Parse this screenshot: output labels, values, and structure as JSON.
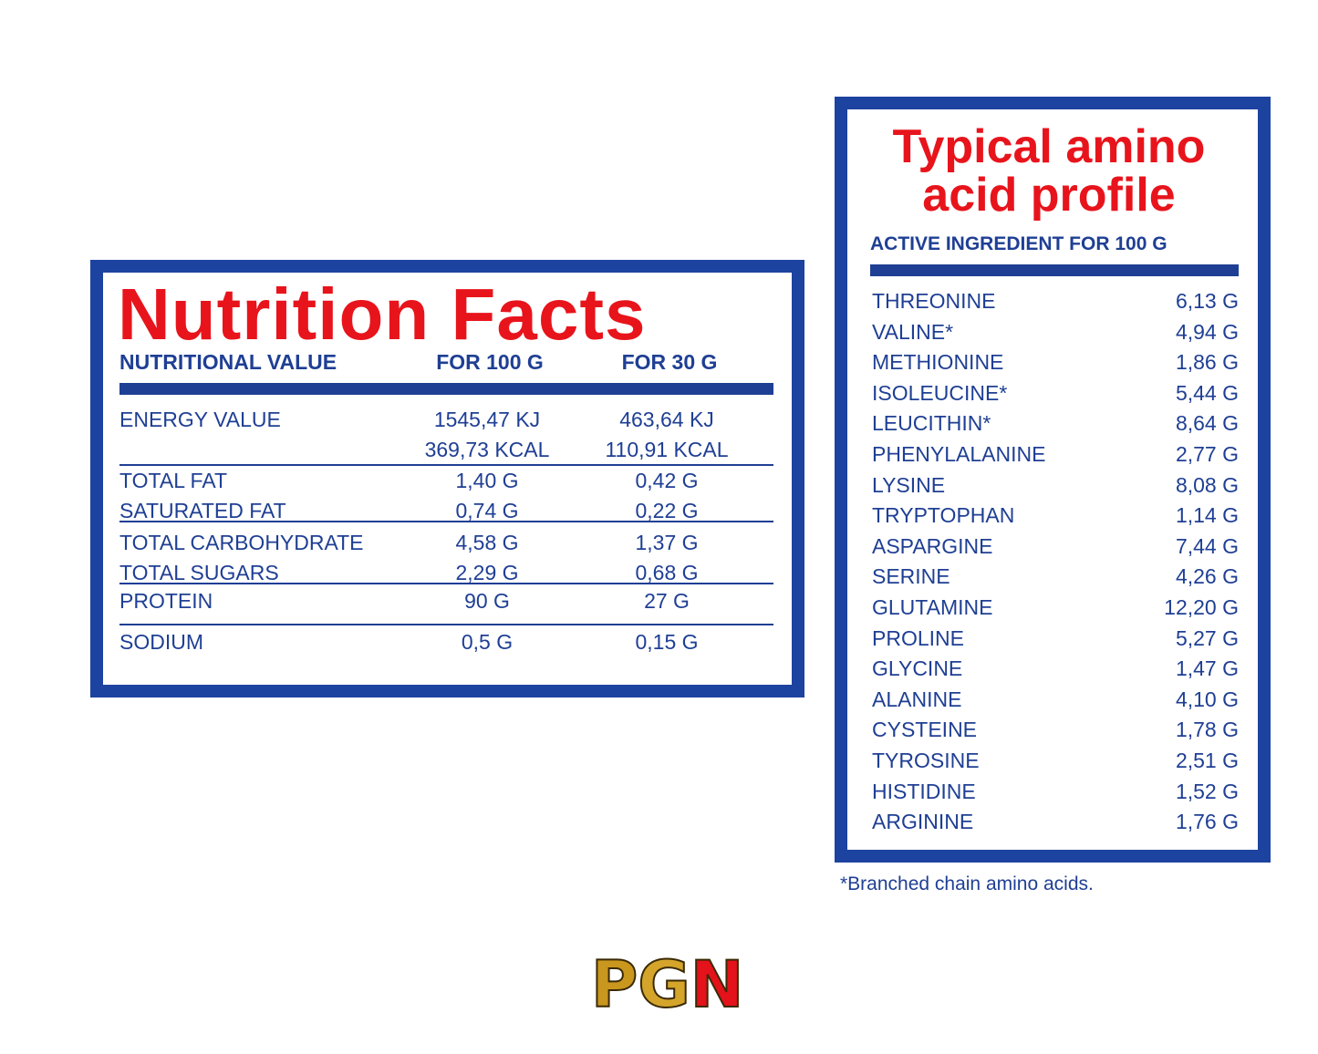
{
  "nutrition": {
    "title": "Nutrition Facts",
    "header": {
      "label": "NUTRITIONAL VALUE",
      "per_100g": "FOR 100 G",
      "per_30g": "FOR 30 G"
    },
    "energy": {
      "label": "ENERGY VALUE",
      "per_100g": [
        "1545,47 KJ",
        "369,73 KCAL"
      ],
      "per_30g": [
        "463,64 KJ",
        "110,91 KCAL"
      ]
    },
    "groups": [
      [
        {
          "label": "TOTAL FAT",
          "per_100g": "1,40 G",
          "per_30g": "0,42 G"
        },
        {
          "label": "SATURATED FAT",
          "per_100g": "0,74 G",
          "per_30g": "0,22 G"
        }
      ],
      [
        {
          "label": "TOTAL CARBOHYDRATE",
          "per_100g": "4,58 G",
          "per_30g": "1,37 G"
        },
        {
          "label": "TOTAL SUGARS",
          "per_100g": "2,29 G",
          "per_30g": "0,68 G"
        }
      ],
      [
        {
          "label": "PROTEIN",
          "per_100g": "90 G",
          "per_30g": "27 G"
        }
      ],
      [
        {
          "label": "SODIUM",
          "per_100g": "0,5 G",
          "per_30g": "0,15 G"
        }
      ]
    ]
  },
  "amino": {
    "title": [
      "Typical amino",
      "acid profile"
    ],
    "subtitle": "ACTIVE INGREDIENT FOR 100 G",
    "rows": [
      {
        "name": "THREONINE",
        "amount": "6,13 G"
      },
      {
        "name": "VALINE*",
        "amount": "4,94 G"
      },
      {
        "name": "METHIONINE",
        "amount": "1,86 G"
      },
      {
        "name": "ISOLEUCINE*",
        "amount": "5,44 G"
      },
      {
        "name": "LEUCITHIN*",
        "amount": "8,64 G"
      },
      {
        "name": "PHENYLALANINE",
        "amount": "2,77 G"
      },
      {
        "name": "LYSINE",
        "amount": "8,08 G"
      },
      {
        "name": "TRYPTOPHAN",
        "amount": "1,14 G"
      },
      {
        "name": "ASPARGINE",
        "amount": "7,44 G"
      },
      {
        "name": "SERINE",
        "amount": "4,26 G"
      },
      {
        "name": "GLUTAMINE",
        "amount": "12,20 G"
      },
      {
        "name": "PROLINE",
        "amount": "5,27 G"
      },
      {
        "name": "GLYCINE",
        "amount": "1,47 G"
      },
      {
        "name": "ALANINE",
        "amount": "4,10 G"
      },
      {
        "name": "CYSTEINE",
        "amount": "1,78 G"
      },
      {
        "name": "TYROSINE",
        "amount": "2,51 G"
      },
      {
        "name": "HISTIDINE",
        "amount": "1,52 G"
      },
      {
        "name": "ARGININE",
        "amount": "1,76 G"
      }
    ]
  },
  "footnote": "*Branched chain amino acids.",
  "logo": [
    "P",
    "G",
    "N"
  ]
}
